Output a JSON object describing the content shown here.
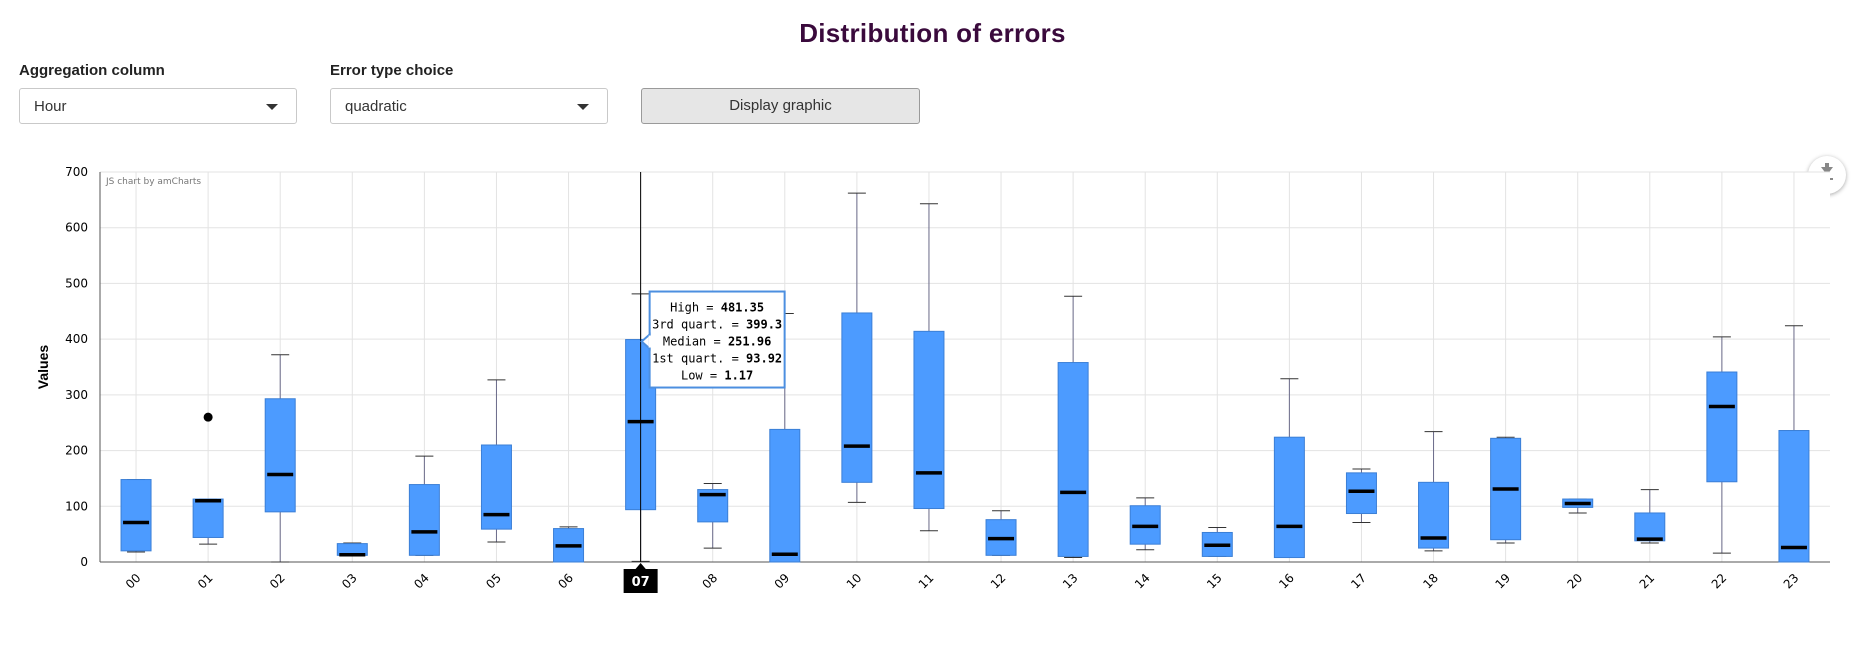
{
  "page": {
    "title": "Distribution of errors"
  },
  "controls": {
    "aggregation": {
      "label": "Aggregation column",
      "value": "Hour"
    },
    "error_type": {
      "label": "Error type choice",
      "value": "quadratic"
    },
    "display_button": "Display graphic"
  },
  "chart_credit": "JS chart by amCharts",
  "export_icon": "download-icon",
  "colors": {
    "box": "#4c9bff",
    "title": "#3a0a3c",
    "median": "#000000"
  },
  "chart_data": {
    "type": "boxplot",
    "title": "",
    "xlabel": "",
    "ylabel": "Values",
    "ylim": [
      0,
      700
    ],
    "yticks": [
      0,
      100,
      200,
      300,
      400,
      500,
      600,
      700
    ],
    "grid": true,
    "categories": [
      "00",
      "01",
      "02",
      "03",
      "04",
      "05",
      "06",
      "07",
      "08",
      "09",
      "10",
      "11",
      "12",
      "13",
      "14",
      "15",
      "16",
      "17",
      "18",
      "19",
      "20",
      "21",
      "22",
      "23"
    ],
    "boxes": [
      {
        "low": 18,
        "q1": 20,
        "median": 71,
        "q3": 148,
        "high": 148
      },
      {
        "low": 32,
        "q1": 44,
        "median": 110,
        "q3": 113,
        "high": 113
      },
      {
        "low": 0,
        "q1": 90,
        "median": 157,
        "q3": 293,
        "high": 372
      },
      {
        "low": 12,
        "q1": 12,
        "median": 13,
        "q3": 33,
        "high": 34
      },
      {
        "low": 12,
        "q1": 12,
        "median": 54,
        "q3": 139,
        "high": 190
      },
      {
        "low": 36,
        "q1": 59,
        "median": 85,
        "q3": 210,
        "high": 327
      },
      {
        "low": 0,
        "q1": 0,
        "median": 29,
        "q3": 60,
        "high": 63
      },
      {
        "low": 1.17,
        "q1": 93.92,
        "median": 251.96,
        "q3": 399.3,
        "high": 481.35
      },
      {
        "low": 25,
        "q1": 72,
        "median": 121,
        "q3": 130,
        "high": 141
      },
      {
        "low": 0,
        "q1": 0,
        "median": 14,
        "q3": 238,
        "high": 446
      },
      {
        "low": 107,
        "q1": 143,
        "median": 208,
        "q3": 447,
        "high": 662
      },
      {
        "low": 56,
        "q1": 96,
        "median": 160,
        "q3": 414,
        "high": 643
      },
      {
        "low": 12,
        "q1": 12,
        "median": 42,
        "q3": 76,
        "high": 92
      },
      {
        "low": 8,
        "q1": 10,
        "median": 125,
        "q3": 358,
        "high": 477
      },
      {
        "low": 22,
        "q1": 32,
        "median": 64,
        "q3": 101,
        "high": 115
      },
      {
        "low": 10,
        "q1": 10,
        "median": 30,
        "q3": 53,
        "high": 62
      },
      {
        "low": 8,
        "q1": 8,
        "median": 64,
        "q3": 224,
        "high": 329
      },
      {
        "low": 71,
        "q1": 87,
        "median": 127,
        "q3": 160,
        "high": 167
      },
      {
        "low": 20,
        "q1": 25,
        "median": 43,
        "q3": 143,
        "high": 234
      },
      {
        "low": 34,
        "q1": 40,
        "median": 131,
        "q3": 222,
        "high": 224
      },
      {
        "low": 88,
        "q1": 98,
        "median": 105,
        "q3": 113,
        "high": 113
      },
      {
        "low": 34,
        "q1": 38,
        "median": 41,
        "q3": 88,
        "high": 130
      },
      {
        "low": 16,
        "q1": 144,
        "median": 279,
        "q3": 341,
        "high": 404
      },
      {
        "low": 0,
        "q1": 0,
        "median": 26,
        "q3": 236,
        "high": 424
      }
    ],
    "outliers": [
      {
        "category": "01",
        "value": 260
      }
    ],
    "hover": {
      "category": "07",
      "lines": [
        {
          "label": "High = ",
          "value": "481.35"
        },
        {
          "label": "3rd quart. = ",
          "value": "399.3"
        },
        {
          "label": "Median = ",
          "value": "251.96"
        },
        {
          "label": "1st quart. = ",
          "value": "93.92"
        },
        {
          "label": "Low = ",
          "value": "1.17"
        }
      ]
    }
  }
}
